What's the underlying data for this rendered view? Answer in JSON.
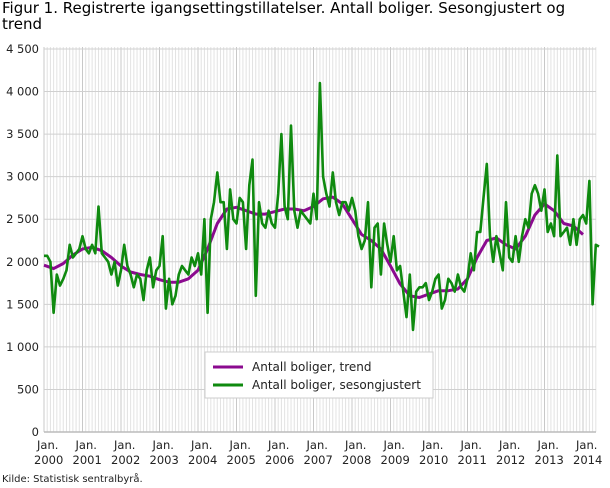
{
  "chart_data": {
    "type": "line",
    "title": "Figur 1. Registrerte igangsettingstillatelser. Antall boliger. Sesongjustert og trend",
    "xlabel": "",
    "ylabel": "",
    "ylim": [
      0,
      4500
    ],
    "y_ticks": [
      "0",
      "500",
      "1 000",
      "1 500",
      "2 000",
      "2 500",
      "3 000",
      "3 500",
      "4 000",
      "4 500"
    ],
    "x_ticks": [
      [
        "Jan.",
        "2000"
      ],
      [
        "Jan.",
        "2001"
      ],
      [
        "Jan.",
        "2002"
      ],
      [
        "Jan.",
        "2003"
      ],
      [
        "Jan.",
        "2004"
      ],
      [
        "Jan.",
        "2005"
      ],
      [
        "Jan.",
        "2006"
      ],
      [
        "Jan.",
        "2007"
      ],
      [
        "Jan.",
        "2008"
      ],
      [
        "Jan.",
        "2009"
      ],
      [
        "Jan.",
        "2010"
      ],
      [
        "Jan.",
        "2011"
      ],
      [
        "Jan.",
        "2012"
      ],
      [
        "Jan.",
        "2013"
      ],
      [
        "Jan.",
        "2014"
      ]
    ],
    "grid": true,
    "legend_position": "bottom-center",
    "start": "2000-01",
    "series": [
      {
        "name": "Antall boliger, trend",
        "color": "#8b0a8f",
        "frequency": "quarterly",
        "values": [
          1960,
          1920,
          1980,
          2080,
          2150,
          2170,
          2130,
          2050,
          1950,
          1880,
          1850,
          1830,
          1790,
          1760,
          1760,
          1800,
          1900,
          2150,
          2450,
          2620,
          2640,
          2600,
          2560,
          2560,
          2590,
          2620,
          2620,
          2600,
          2650,
          2740,
          2760,
          2680,
          2500,
          2320,
          2250,
          2150,
          1950,
          1740,
          1600,
          1580,
          1620,
          1660,
          1660,
          1680,
          1800,
          2050,
          2250,
          2280,
          2200,
          2150,
          2300,
          2550,
          2680,
          2600,
          2450,
          2420,
          2320
        ]
      },
      {
        "name": "Antall boliger, sesongjustert",
        "color": "#0f8a0f",
        "frequency": "monthly",
        "values": [
          2070,
          2070,
          2000,
          1400,
          1850,
          1720,
          1800,
          1900,
          2200,
          2050,
          2100,
          2150,
          2300,
          2150,
          2100,
          2200,
          2100,
          2650,
          2100,
          2050,
          2000,
          1850,
          2000,
          1720,
          1900,
          2200,
          1950,
          1850,
          1700,
          1850,
          1800,
          1550,
          1900,
          2050,
          1700,
          1900,
          1950,
          2300,
          1450,
          1800,
          1500,
          1600,
          1850,
          1950,
          1900,
          1850,
          2050,
          1950,
          2100,
          1850,
          2500,
          1400,
          2500,
          2700,
          3050,
          2700,
          2700,
          2150,
          2850,
          2500,
          2450,
          2750,
          2700,
          2150,
          2900,
          3200,
          1600,
          2700,
          2450,
          2400,
          2600,
          2450,
          2400,
          2800,
          3500,
          2650,
          2500,
          3600,
          2600,
          2400,
          2600,
          2550,
          2500,
          2450,
          2800,
          2500,
          4100,
          3000,
          2800,
          2650,
          3050,
          2700,
          2550,
          2700,
          2700,
          2600,
          2750,
          2600,
          2300,
          2150,
          2250,
          2700,
          1700,
          2400,
          2450,
          1850,
          2450,
          2200,
          2000,
          2300,
          1900,
          1950,
          1650,
          1350,
          1850,
          1200,
          1650,
          1700,
          1700,
          1750,
          1550,
          1650,
          1800,
          1850,
          1450,
          1550,
          1800,
          1750,
          1650,
          1850,
          1700,
          1650,
          1800,
          2100,
          1900,
          2350,
          2350,
          2750,
          3150,
          2300,
          2000,
          2300,
          2100,
          1900,
          2700,
          2050,
          2000,
          2300,
          2000,
          2300,
          2500,
          2400,
          2800,
          2900,
          2800,
          2600,
          2850,
          2350,
          2450,
          2300,
          3250,
          2300,
          2350,
          2400,
          2200,
          2500,
          2200,
          2500,
          2550,
          2450,
          2950,
          1500,
          2200,
          2180
        ]
      }
    ]
  },
  "source": "Kilde: Statistisk sentralbyrå."
}
